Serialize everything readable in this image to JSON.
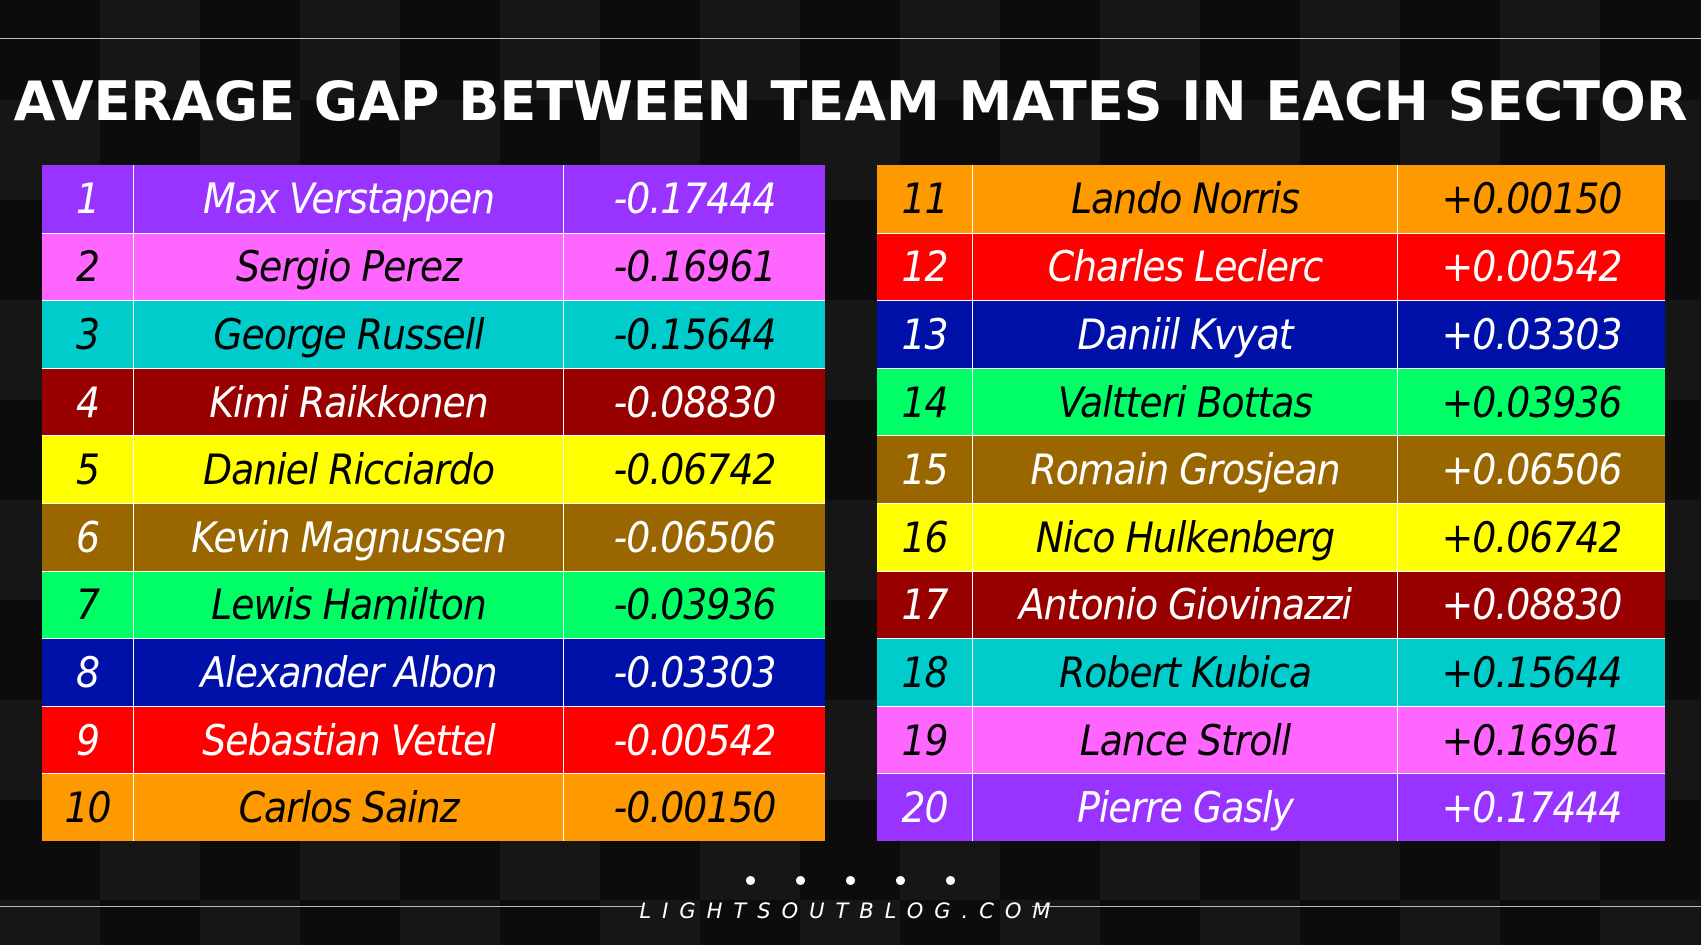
{
  "title": "AVERAGE GAP BETWEEN TEAM MATES IN EACH SECTOR",
  "footer": "LIGHTSOUTBLOG.COM",
  "left_table": [
    {
      "pos": "1",
      "name": "Max Verstappen",
      "gap": "-0.17444",
      "bg": "#9933ff",
      "fg": "#ffffff"
    },
    {
      "pos": "2",
      "name": "Sergio Perez",
      "gap": "-0.16961",
      "bg": "#ff66ff",
      "fg": "#000000"
    },
    {
      "pos": "3",
      "name": "George Russell",
      "gap": "-0.15644",
      "bg": "#00cccc",
      "fg": "#000000"
    },
    {
      "pos": "4",
      "name": "Kimi Raikkonen",
      "gap": "-0.08830",
      "bg": "#990000",
      "fg": "#ffffff"
    },
    {
      "pos": "5",
      "name": "Daniel Ricciardo",
      "gap": "-0.06742",
      "bg": "#ffff00",
      "fg": "#000000"
    },
    {
      "pos": "6",
      "name": "Kevin Magnussen",
      "gap": "-0.06506",
      "bg": "#996600",
      "fg": "#ffffff"
    },
    {
      "pos": "7",
      "name": "Lewis Hamilton",
      "gap": "-0.03936",
      "bg": "#00ff66",
      "fg": "#000000"
    },
    {
      "pos": "8",
      "name": "Alexander Albon",
      "gap": "-0.03303",
      "bg": "#0011aa",
      "fg": "#ffffff"
    },
    {
      "pos": "9",
      "name": "Sebastian Vettel",
      "gap": "-0.00542",
      "bg": "#ff0000",
      "fg": "#ffffff"
    },
    {
      "pos": "10",
      "name": "Carlos Sainz",
      "gap": "-0.00150",
      "bg": "#ff9900",
      "fg": "#000000"
    }
  ],
  "right_table": [
    {
      "pos": "11",
      "name": "Lando Norris",
      "gap": "+0.00150",
      "bg": "#ff9900",
      "fg": "#000000"
    },
    {
      "pos": "12",
      "name": "Charles Leclerc",
      "gap": "+0.00542",
      "bg": "#ff0000",
      "fg": "#ffffff"
    },
    {
      "pos": "13",
      "name": "Daniil Kvyat",
      "gap": "+0.03303",
      "bg": "#0011aa",
      "fg": "#ffffff"
    },
    {
      "pos": "14",
      "name": "Valtteri Bottas",
      "gap": "+0.03936",
      "bg": "#00ff66",
      "fg": "#000000"
    },
    {
      "pos": "15",
      "name": "Romain Grosjean",
      "gap": "+0.06506",
      "bg": "#996600",
      "fg": "#ffffff"
    },
    {
      "pos": "16",
      "name": "Nico Hulkenberg",
      "gap": "+0.06742",
      "bg": "#ffff00",
      "fg": "#000000"
    },
    {
      "pos": "17",
      "name": "Antonio Giovinazzi",
      "gap": "+0.08830",
      "bg": "#990000",
      "fg": "#ffffff"
    },
    {
      "pos": "18",
      "name": "Robert Kubica",
      "gap": "+0.15644",
      "bg": "#00cccc",
      "fg": "#000000"
    },
    {
      "pos": "19",
      "name": "Lance Stroll",
      "gap": "+0.16961",
      "bg": "#ff66ff",
      "fg": "#000000"
    },
    {
      "pos": "20",
      "name": "Pierre Gasly",
      "gap": "+0.17444",
      "bg": "#9933ff",
      "fg": "#ffffff"
    }
  ]
}
